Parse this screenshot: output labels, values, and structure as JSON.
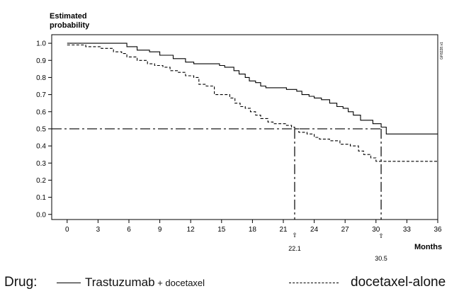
{
  "chart_data": {
    "type": "line",
    "title": "",
    "ylabel": [
      "Estimated",
      "probability"
    ],
    "xlabel": "Months",
    "side_label": "GF8228.v1",
    "xlim": [
      -1.5,
      36
    ],
    "ylim": [
      -0.03,
      1.05
    ],
    "x_ticks": [
      "0",
      "3",
      "6",
      "9",
      "12",
      "15",
      "18",
      "21",
      "24",
      "27",
      "30",
      "33",
      "36"
    ],
    "y_ticks": [
      "0.0",
      "0.1",
      "0.2",
      "0.3",
      "0.4",
      "0.5",
      "0.6",
      "0.7",
      "0.8",
      "0.9",
      "1.0"
    ],
    "grid": false,
    "legend": {
      "title": "Drug:",
      "position": "bottom"
    },
    "series": [
      {
        "name": "Trastuzumab + docetaxel",
        "style": "solid",
        "steps": [
          [
            0,
            1.0
          ],
          [
            5.8,
            0.98
          ],
          [
            6.8,
            0.96
          ],
          [
            8.0,
            0.95
          ],
          [
            9.0,
            0.93
          ],
          [
            10.3,
            0.91
          ],
          [
            11.5,
            0.89
          ],
          [
            12.3,
            0.88
          ],
          [
            14.8,
            0.87
          ],
          [
            15.3,
            0.86
          ],
          [
            16.2,
            0.84
          ],
          [
            16.7,
            0.82
          ],
          [
            17.3,
            0.8
          ],
          [
            17.7,
            0.78
          ],
          [
            18.3,
            0.77
          ],
          [
            18.8,
            0.75
          ],
          [
            19.3,
            0.74
          ],
          [
            21.3,
            0.73
          ],
          [
            22.3,
            0.72
          ],
          [
            22.8,
            0.7
          ],
          [
            23.5,
            0.69
          ],
          [
            24.0,
            0.68
          ],
          [
            24.7,
            0.67
          ],
          [
            25.5,
            0.65
          ],
          [
            26.2,
            0.63
          ],
          [
            26.8,
            0.62
          ],
          [
            27.3,
            0.6
          ],
          [
            27.8,
            0.58
          ],
          [
            28.5,
            0.55
          ],
          [
            29.7,
            0.53
          ],
          [
            30.5,
            0.51
          ],
          [
            31.0,
            0.47
          ],
          [
            36.0,
            0.47
          ]
        ]
      },
      {
        "name": "docetaxel-alone",
        "style": "dashed",
        "steps": [
          [
            0,
            0.99
          ],
          [
            1.8,
            0.98
          ],
          [
            3.3,
            0.97
          ],
          [
            4.5,
            0.95
          ],
          [
            5.3,
            0.94
          ],
          [
            5.8,
            0.92
          ],
          [
            6.8,
            0.9
          ],
          [
            7.8,
            0.88
          ],
          [
            8.5,
            0.87
          ],
          [
            9.3,
            0.86
          ],
          [
            10.0,
            0.84
          ],
          [
            10.8,
            0.83
          ],
          [
            11.5,
            0.81
          ],
          [
            12.3,
            0.8
          ],
          [
            12.8,
            0.76
          ],
          [
            13.5,
            0.75
          ],
          [
            14.3,
            0.7
          ],
          [
            15.8,
            0.68
          ],
          [
            16.3,
            0.65
          ],
          [
            16.8,
            0.63
          ],
          [
            17.3,
            0.62
          ],
          [
            17.8,
            0.6
          ],
          [
            18.3,
            0.58
          ],
          [
            18.8,
            0.56
          ],
          [
            19.5,
            0.54
          ],
          [
            20.0,
            0.53
          ],
          [
            21.3,
            0.52
          ],
          [
            21.8,
            0.51
          ],
          [
            22.1,
            0.5
          ],
          [
            22.5,
            0.48
          ],
          [
            23.3,
            0.47
          ],
          [
            24.0,
            0.45
          ],
          [
            24.5,
            0.44
          ],
          [
            25.5,
            0.43
          ],
          [
            26.5,
            0.41
          ],
          [
            27.5,
            0.4
          ],
          [
            28.3,
            0.37
          ],
          [
            28.8,
            0.35
          ],
          [
            29.5,
            0.33
          ],
          [
            30.0,
            0.31
          ],
          [
            36.0,
            0.31
          ]
        ]
      }
    ],
    "reference": {
      "horizontal_y": 0.5,
      "medians": [
        {
          "x": 22.1,
          "label": "22.1"
        },
        {
          "x": 30.5,
          "label": "30.5"
        }
      ],
      "marker": "⇧"
    }
  },
  "legend_text": {
    "title": "Drug:",
    "series1_main": "Trastuzumab",
    "series1_plus": " + docetaxel",
    "series2": "docetaxel-alone"
  }
}
